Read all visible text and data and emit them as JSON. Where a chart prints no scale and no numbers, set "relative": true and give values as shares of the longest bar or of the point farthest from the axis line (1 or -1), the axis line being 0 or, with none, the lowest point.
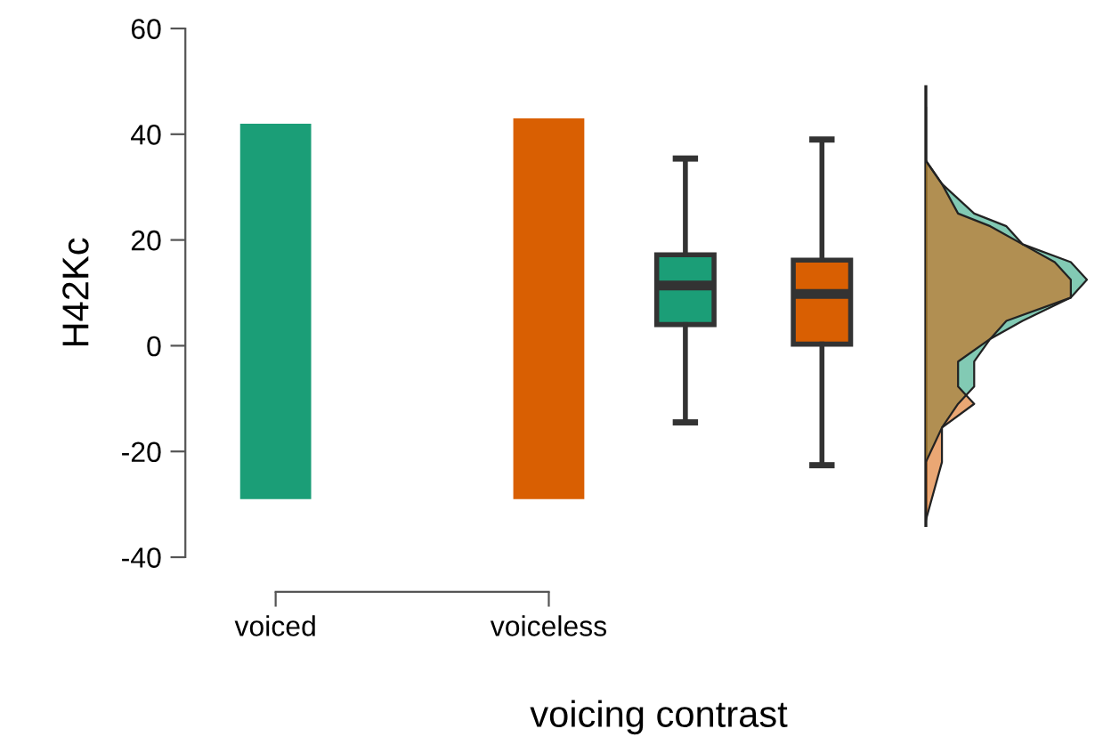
{
  "chart_data": [
    {
      "type": "bar",
      "xlabel": "voicing contrast",
      "ylabel": "H42Kc",
      "categories": [
        "voiced",
        null,
        "voiceless",
        null,
        null
      ],
      "ylim": [
        -40,
        60
      ],
      "yticks": [
        -40,
        -20,
        0,
        20,
        40,
        60
      ],
      "grid": false,
      "legend": false,
      "series": [
        {
          "base": [
            -29,
            null,
            -29,
            null,
            null
          ],
          "values": [
            71,
            null,
            72,
            null,
            null
          ],
          "colors": [
            "#1b9e77",
            null,
            "#d95f02",
            null,
            null
          ]
        },
        {
          "type": "box",
          "colors": [
            null,
            null,
            null,
            "#1b9e77",
            "#d95f02"
          ],
          "boxes": [
            null,
            null,
            null,
            {
              "low": -14.5,
              "q1": 4,
              "median": 11.4,
              "q3": 17.2,
              "high": 35.4
            },
            {
              "low": -22.6,
              "q1": 0.3,
              "median": 9.8,
              "q3": 16.2,
              "high": 39
            }
          ]
        }
      ]
    },
    {
      "type": "area",
      "orientation": "horizontal",
      "relative": true,
      "ylim": [
        -40,
        60
      ],
      "tick_labels": false,
      "series": [
        {
          "color": "#1b9e77",
          "x": [
            -33,
            -22,
            -15.5,
            -11,
            -7.7,
            -3,
            1.3,
            4.7,
            9.1,
            12.5,
            15.8,
            19.2,
            22.6,
            25,
            30.6,
            35,
            45
          ],
          "values": [
            0,
            0,
            0.1,
            0.2,
            0.3,
            0.3,
            0.4,
            0.6,
            0.9,
            1,
            0.9,
            0.6,
            0.5,
            0.3,
            0.1,
            0,
            0
          ]
        },
        {
          "color": "#d95f02",
          "x": [
            -33,
            -22,
            -15.5,
            -11,
            -7.7,
            -3,
            1.3,
            4.7,
            9.1,
            12.5,
            15.8,
            19.2,
            22.6,
            25,
            30.6,
            35,
            45
          ],
          "values": [
            0,
            0.1,
            0.1,
            0.3,
            0.2,
            0.2,
            0.4,
            0.5,
            0.9,
            0.9,
            0.8,
            0.6,
            0.4,
            0.2,
            0.1,
            0,
            0
          ]
        }
      ]
    }
  ]
}
